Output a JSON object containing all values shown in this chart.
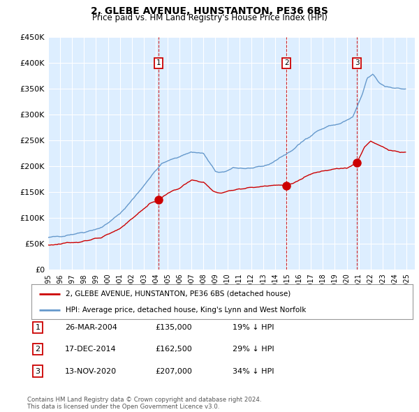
{
  "title": "2, GLEBE AVENUE, HUNSTANTON, PE36 6BS",
  "subtitle": "Price paid vs. HM Land Registry's House Price Index (HPI)",
  "ylim": [
    0,
    450000
  ],
  "yticks": [
    0,
    50000,
    100000,
    150000,
    200000,
    250000,
    300000,
    350000,
    400000,
    450000
  ],
  "ytick_labels": [
    "£0",
    "£50K",
    "£100K",
    "£150K",
    "£200K",
    "£250K",
    "£300K",
    "£350K",
    "£400K",
    "£450K"
  ],
  "xlim_start": 1995.3,
  "xlim_end": 2025.7,
  "xtick_years": [
    1995,
    1996,
    1997,
    1998,
    1999,
    2000,
    2001,
    2002,
    2003,
    2004,
    2005,
    2006,
    2007,
    2008,
    2009,
    2010,
    2011,
    2012,
    2013,
    2014,
    2015,
    2016,
    2017,
    2018,
    2019,
    2020,
    2021,
    2022,
    2023,
    2024,
    2025
  ],
  "sale_color": "#cc0000",
  "hpi_color": "#6699cc",
  "background_color": "#ddeeff",
  "plot_bg": "#ffffff",
  "sale_dates": [
    2004.23,
    2014.96,
    2020.87
  ],
  "sale_prices": [
    135000,
    162500,
    207000
  ],
  "sale_labels": [
    "1",
    "2",
    "3"
  ],
  "vline_dates": [
    2004.23,
    2014.96,
    2020.87
  ],
  "legend_sale": "2, GLEBE AVENUE, HUNSTANTON, PE36 6BS (detached house)",
  "legend_hpi": "HPI: Average price, detached house, King's Lynn and West Norfolk",
  "table_rows": [
    {
      "num": "1",
      "date": "26-MAR-2004",
      "price": "£135,000",
      "pct": "19% ↓ HPI"
    },
    {
      "num": "2",
      "date": "17-DEC-2014",
      "price": "£162,500",
      "pct": "29% ↓ HPI"
    },
    {
      "num": "3",
      "date": "13-NOV-2020",
      "price": "£207,000",
      "pct": "34% ↓ HPI"
    }
  ],
  "footnote": "Contains HM Land Registry data © Crown copyright and database right 2024.\nThis data is licensed under the Open Government Licence v3.0."
}
